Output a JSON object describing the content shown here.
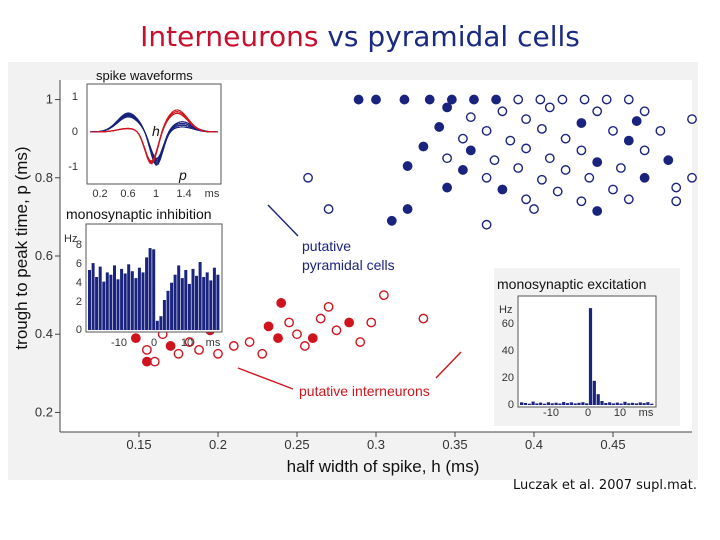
{
  "slide": {
    "title_part1": "Interneurons",
    "title_part2": " vs pyramidal cells",
    "credit": "Luczak et al. 2007 supl.mat."
  },
  "colors": {
    "pyramidal": "#1a237e",
    "interneuron": "#d0141e",
    "text": "#111111"
  },
  "chart_data": {
    "type": "scatter",
    "xlabel": "half width of spike, h (ms)",
    "ylabel": "trough to peak time, p (ms)",
    "xlim": [
      0.1,
      0.5
    ],
    "ylim": [
      0.15,
      1.05
    ],
    "x_ticks": [
      0.15,
      0.2,
      0.25,
      0.3,
      0.35,
      0.4,
      0.45
    ],
    "x_tick_labels": [
      "0.15",
      "0.2",
      "0.25",
      "0.3",
      "0.35",
      "0.4",
      "0.45"
    ],
    "y_ticks": [
      0.2,
      0.4,
      0.6,
      0.8,
      1.0
    ],
    "y_tick_labels": [
      "0.2",
      "0.4",
      "0.6",
      "0.8",
      "1"
    ],
    "annotations": [
      "putative",
      "pyramidal cells",
      "putative interneurons"
    ],
    "series": [
      {
        "key": "pyramidal",
        "points": [
          [
            0.334,
            1.0
          ],
          [
            0.348,
            1.0
          ],
          [
            0.362,
            1.0
          ],
          [
            0.376,
            1.0
          ],
          [
            0.39,
            1.0
          ],
          [
            0.404,
            1.0
          ],
          [
            0.418,
            1.0
          ],
          [
            0.432,
            1.0
          ],
          [
            0.446,
            1.0
          ],
          [
            0.46,
            1.0
          ],
          [
            0.3,
            1.0
          ],
          [
            0.318,
            1.0
          ],
          [
            0.289,
            1.0
          ],
          [
            0.345,
            0.98
          ],
          [
            0.38,
            0.97
          ],
          [
            0.41,
            0.98
          ],
          [
            0.44,
            0.97
          ],
          [
            0.47,
            0.97
          ],
          [
            0.36,
            0.955
          ],
          [
            0.395,
            0.95
          ],
          [
            0.43,
            0.94
          ],
          [
            0.465,
            0.945
          ],
          [
            0.34,
            0.93
          ],
          [
            0.37,
            0.92
          ],
          [
            0.405,
            0.925
          ],
          [
            0.45,
            0.92
          ],
          [
            0.48,
            0.92
          ],
          [
            0.355,
            0.9
          ],
          [
            0.385,
            0.895
          ],
          [
            0.42,
            0.9
          ],
          [
            0.46,
            0.895
          ],
          [
            0.33,
            0.88
          ],
          [
            0.36,
            0.87
          ],
          [
            0.395,
            0.875
          ],
          [
            0.43,
            0.87
          ],
          [
            0.47,
            0.87
          ],
          [
            0.345,
            0.85
          ],
          [
            0.375,
            0.845
          ],
          [
            0.41,
            0.85
          ],
          [
            0.44,
            0.84
          ],
          [
            0.485,
            0.845
          ],
          [
            0.32,
            0.83
          ],
          [
            0.355,
            0.82
          ],
          [
            0.39,
            0.825
          ],
          [
            0.42,
            0.82
          ],
          [
            0.455,
            0.825
          ],
          [
            0.37,
            0.8
          ],
          [
            0.405,
            0.795
          ],
          [
            0.435,
            0.8
          ],
          [
            0.47,
            0.8
          ],
          [
            0.345,
            0.775
          ],
          [
            0.38,
            0.77
          ],
          [
            0.415,
            0.765
          ],
          [
            0.45,
            0.77
          ],
          [
            0.49,
            0.775
          ],
          [
            0.395,
            0.745
          ],
          [
            0.43,
            0.74
          ],
          [
            0.46,
            0.745
          ],
          [
            0.4,
            0.72
          ],
          [
            0.44,
            0.715
          ],
          [
            0.32,
            0.72
          ],
          [
            0.31,
            0.69
          ],
          [
            0.27,
            0.72
          ],
          [
            0.257,
            0.8
          ],
          [
            0.37,
            0.68
          ],
          [
            0.49,
            0.74
          ],
          [
            0.5,
            0.8
          ],
          [
            0.5,
            0.95
          ]
        ],
        "filled_count": 24
      },
      {
        "key": "interneuron",
        "points": [
          [
            0.14,
            0.42
          ],
          [
            0.148,
            0.39
          ],
          [
            0.155,
            0.36
          ],
          [
            0.16,
            0.33
          ],
          [
            0.165,
            0.4
          ],
          [
            0.17,
            0.37
          ],
          [
            0.175,
            0.35
          ],
          [
            0.182,
            0.38
          ],
          [
            0.188,
            0.36
          ],
          [
            0.195,
            0.41
          ],
          [
            0.2,
            0.35
          ],
          [
            0.22,
            0.38
          ],
          [
            0.228,
            0.35
          ],
          [
            0.232,
            0.42
          ],
          [
            0.238,
            0.39
          ],
          [
            0.245,
            0.43
          ],
          [
            0.25,
            0.4
          ],
          [
            0.255,
            0.37
          ],
          [
            0.26,
            0.39
          ],
          [
            0.265,
            0.44
          ],
          [
            0.27,
            0.47
          ],
          [
            0.275,
            0.41
          ],
          [
            0.283,
            0.43
          ],
          [
            0.29,
            0.38
          ],
          [
            0.297,
            0.43
          ],
          [
            0.305,
            0.5
          ],
          [
            0.24,
            0.48
          ],
          [
            0.155,
            0.33
          ],
          [
            0.21,
            0.37
          ],
          [
            0.33,
            0.44
          ]
        ],
        "filled_count": 10
      }
    ],
    "insets": [
      {
        "title": "spike waveforms",
        "x_tick_labels": [
          "0.2",
          "0.6",
          "1",
          "1.4",
          "ms"
        ],
        "y_tick_labels": [
          "1",
          "0",
          "-1"
        ],
        "markers": [
          "h",
          "p"
        ]
      },
      {
        "title": "monosynaptic inhibition",
        "type": "bar",
        "unit": "Hz",
        "y_tick_labels": [
          "8",
          "6",
          "4",
          "2",
          "0"
        ],
        "x_tick_labels": [
          "-10",
          "0",
          "10",
          "ms"
        ],
        "values": [
          5.2,
          5.8,
          4.6,
          5.5,
          4.2,
          5.0,
          4.8,
          5.6,
          4.4,
          5.3,
          4.9,
          5.7,
          5.1,
          4.5,
          5.4,
          5.0,
          6.3,
          7.1,
          7.0,
          0.8,
          1.2,
          2.6,
          3.4,
          4.1,
          4.8,
          5.6,
          4.5,
          5.2,
          4.0,
          5.3,
          4.7,
          5.9,
          4.6,
          5.0,
          4.3,
          5.4,
          4.8
        ]
      },
      {
        "title": "monosynaptic excitation",
        "type": "bar",
        "unit": "Hz",
        "y_tick_labels": [
          "60",
          "40",
          "20",
          "0"
        ],
        "x_tick_labels": [
          "-10",
          "0",
          "10",
          "ms"
        ],
        "values": [
          2,
          1.5,
          1,
          2.5,
          1.2,
          1.8,
          1,
          2,
          1.3,
          1.7,
          1.1,
          2.2,
          1.4,
          1.9,
          1.2,
          1.6,
          2.1,
          1.3,
          72,
          18,
          8,
          3,
          1.5,
          2,
          1.2,
          1.8,
          1.1,
          2.4,
          1.3,
          1.6,
          1.2,
          1.9,
          1.4,
          2.1,
          1.0
        ]
      }
    ]
  }
}
